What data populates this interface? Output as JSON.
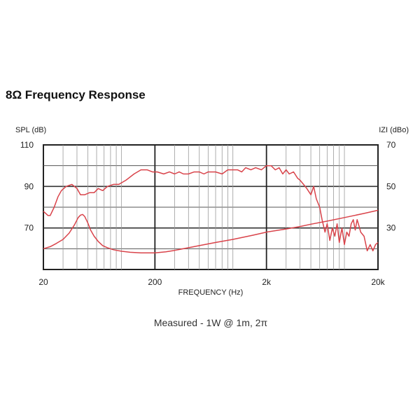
{
  "page": {
    "title": "8Ω Frequency Response"
  },
  "chart_data": {
    "type": "line",
    "title": "8Ω Frequency Response",
    "xlabel": "FREQUENCY (Hz)",
    "ylabel": "SPL (dB)",
    "y2label": "IZI (dBo)",
    "caption": "Measured - 1W @ 1m, 2π",
    "x_scale": "log",
    "xlim": [
      20,
      20000
    ],
    "ylim": [
      50,
      110
    ],
    "y2lim": [
      10,
      70
    ],
    "x_ticks": [
      {
        "v": 20,
        "label": "20"
      },
      {
        "v": 200,
        "label": "200"
      },
      {
        "v": 2000,
        "label": "2k"
      },
      {
        "v": 20000,
        "label": "20k"
      }
    ],
    "y_ticks": [
      {
        "v": 110,
        "label": "110"
      },
      {
        "v": 90,
        "label": "90"
      },
      {
        "v": 70,
        "label": "70"
      }
    ],
    "y2_ticks": [
      {
        "v": 70,
        "label": "70"
      },
      {
        "v": 50,
        "label": "50"
      },
      {
        "v": 30,
        "label": "30"
      }
    ],
    "grid": true,
    "color": "#d9434a",
    "series": [
      {
        "axis": "left",
        "x": [
          20,
          21,
          22,
          23,
          25,
          27,
          29,
          32,
          36,
          40,
          43,
          47,
          52,
          57,
          62,
          68,
          75,
          85,
          95,
          110,
          130,
          150,
          170,
          190,
          210,
          240,
          270,
          300,
          330,
          360,
          400,
          450,
          500,
          550,
          600,
          700,
          800,
          900,
          1000,
          1100,
          1200,
          1300,
          1450,
          1600,
          1800,
          2000,
          2200,
          2400,
          2600,
          2800,
          3000,
          3200,
          3500,
          3800,
          4000,
          4300,
          4600,
          5000,
          5300,
          5600,
          6000,
          6300,
          6700,
          7000,
          7400,
          7800,
          8200,
          8600,
          9000,
          9500,
          10000,
          10500,
          11000,
          11500,
          12000,
          12500,
          13000,
          13500,
          14000,
          15000,
          16000,
          17000,
          18000,
          19000,
          20000
        ],
        "y": [
          78,
          77,
          76,
          76,
          80,
          85,
          88,
          90,
          91,
          89,
          86,
          86,
          87,
          87,
          89,
          88,
          90,
          91,
          91,
          93,
          96,
          98,
          98,
          97,
          97,
          96,
          97,
          96,
          97,
          96,
          96,
          97,
          97,
          96,
          97,
          97,
          96,
          98,
          98,
          98,
          97,
          99,
          98,
          99,
          98,
          100,
          100,
          98,
          99,
          96,
          98,
          96,
          97,
          94,
          93,
          91,
          89,
          86,
          90,
          84,
          80,
          74,
          68,
          72,
          64,
          70,
          66,
          72,
          63,
          70,
          62,
          68,
          66,
          72,
          74,
          69,
          74,
          71,
          68,
          66,
          59,
          62,
          59,
          62,
          63
        ]
      },
      {
        "axis": "right",
        "x": [
          20,
          23,
          26,
          30,
          34,
          38,
          41,
          43,
          45,
          47,
          50,
          53,
          57,
          62,
          68,
          75,
          85,
          100,
          120,
          150,
          200,
          250,
          300,
          400,
          500,
          700,
          1000,
          1500,
          2000,
          3000,
          4000,
          5000,
          7000,
          10000,
          15000,
          20000
        ],
        "y": [
          20,
          21,
          22.5,
          24.5,
          27.5,
          31.5,
          35,
          36.2,
          36.5,
          35.5,
          32.5,
          29,
          26,
          23.5,
          21.5,
          20.5,
          19.5,
          18.8,
          18.3,
          18,
          18,
          18.5,
          19.2,
          20.5,
          21.5,
          23,
          24.5,
          26.5,
          28,
          29.5,
          30.7,
          31.8,
          33.3,
          35,
          37,
          38.5
        ]
      }
    ]
  }
}
